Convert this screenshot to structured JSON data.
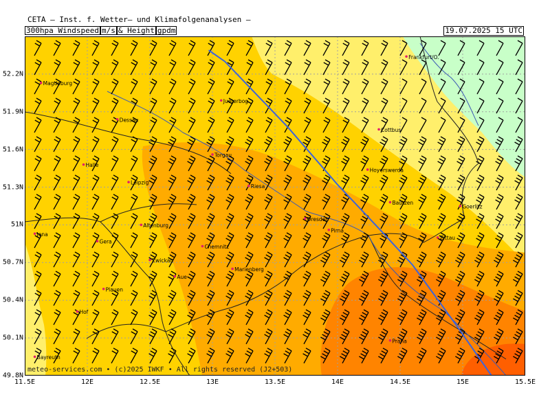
{
  "header": {
    "org_line": "CETA – Inst. f. Wetter– und Klimafolgenanalysen –",
    "product": "300hpa Windspeed",
    "unit1": "m/s",
    "and": "& Height",
    "unit2": "gpdm",
    "valid_time": "19.07.2025 15 UTC"
  },
  "credit": "meteo-services.com • (c)2025 IWKF • All rights reserved (J2+503)",
  "axes": {
    "x_ticks": [
      "11.5E",
      "12E",
      "12.5E",
      "13E",
      "13.5E",
      "14E",
      "14.5E",
      "15E",
      "15.5E"
    ],
    "y_ticks": [
      "52.2N",
      "51.9N",
      "51.6N",
      "51.3N",
      "51N",
      "50.7N",
      "50.4N",
      "50.1N",
      "49.8N"
    ]
  },
  "cities": [
    {
      "name": "Magdeburg",
      "lon": 11.63,
      "lat": 52.13
    },
    {
      "name": "Jueterbog",
      "lon": 13.07,
      "lat": 51.99
    },
    {
      "name": "Frankfurt/O.",
      "lon": 14.55,
      "lat": 52.34
    },
    {
      "name": "Dessau",
      "lon": 12.24,
      "lat": 51.84
    },
    {
      "name": "Cottbus",
      "lon": 14.33,
      "lat": 51.76
    },
    {
      "name": "Torgau",
      "lon": 13.0,
      "lat": 51.56
    },
    {
      "name": "Halle",
      "lon": 11.97,
      "lat": 51.48
    },
    {
      "name": "Hoyerswerda",
      "lon": 14.24,
      "lat": 51.44
    },
    {
      "name": "Leipzig",
      "lon": 12.33,
      "lat": 51.34
    },
    {
      "name": "Riesa",
      "lon": 13.29,
      "lat": 51.31
    },
    {
      "name": "Bautzen",
      "lon": 14.42,
      "lat": 51.18
    },
    {
      "name": "Goerlitz",
      "lon": 14.98,
      "lat": 51.15
    },
    {
      "name": "Altenburg",
      "lon": 12.43,
      "lat": 51.0
    },
    {
      "name": "Dresden",
      "lon": 13.74,
      "lat": 51.05
    },
    {
      "name": "Pirna",
      "lon": 13.93,
      "lat": 50.96
    },
    {
      "name": "Jena",
      "lon": 11.58,
      "lat": 50.93
    },
    {
      "name": "Gera",
      "lon": 12.08,
      "lat": 50.87
    },
    {
      "name": "Zittau",
      "lon": 14.8,
      "lat": 50.9
    },
    {
      "name": "Chemnitz",
      "lon": 12.92,
      "lat": 50.83
    },
    {
      "name": "Zwickau",
      "lon": 12.5,
      "lat": 50.72
    },
    {
      "name": "Marienberg",
      "lon": 13.16,
      "lat": 50.65
    },
    {
      "name": "Aue",
      "lon": 12.7,
      "lat": 50.59
    },
    {
      "name": "Plauen",
      "lon": 12.13,
      "lat": 50.49
    },
    {
      "name": "Hof",
      "lon": 11.92,
      "lat": 50.31
    },
    {
      "name": "Praha",
      "lon": 14.42,
      "lat": 50.08
    },
    {
      "name": "Bayreuth",
      "lon": 11.58,
      "lat": 49.95
    }
  ],
  "height_contour": [
    [
      12.97,
      52.39
    ],
    [
      13.1,
      52.3
    ],
    [
      13.6,
      51.78
    ],
    [
      14.0,
      51.32
    ],
    [
      14.35,
      50.95
    ],
    [
      14.6,
      50.68
    ],
    [
      14.95,
      50.2
    ],
    [
      15.23,
      49.8
    ]
  ],
  "colors": {
    "speed_30_40": "#ffef6b",
    "speed_40_50": "#ffd200",
    "speed_50_60": "#ffab00",
    "speed_60_70": "#ff8400",
    "speed_70_80": "#ff5f00",
    "speed_below_30": "#c8ffc8",
    "height_line": "#3c64dc",
    "river": "#3c5ab4",
    "border": "#222222",
    "city": "#e0206a"
  },
  "grid": true
}
